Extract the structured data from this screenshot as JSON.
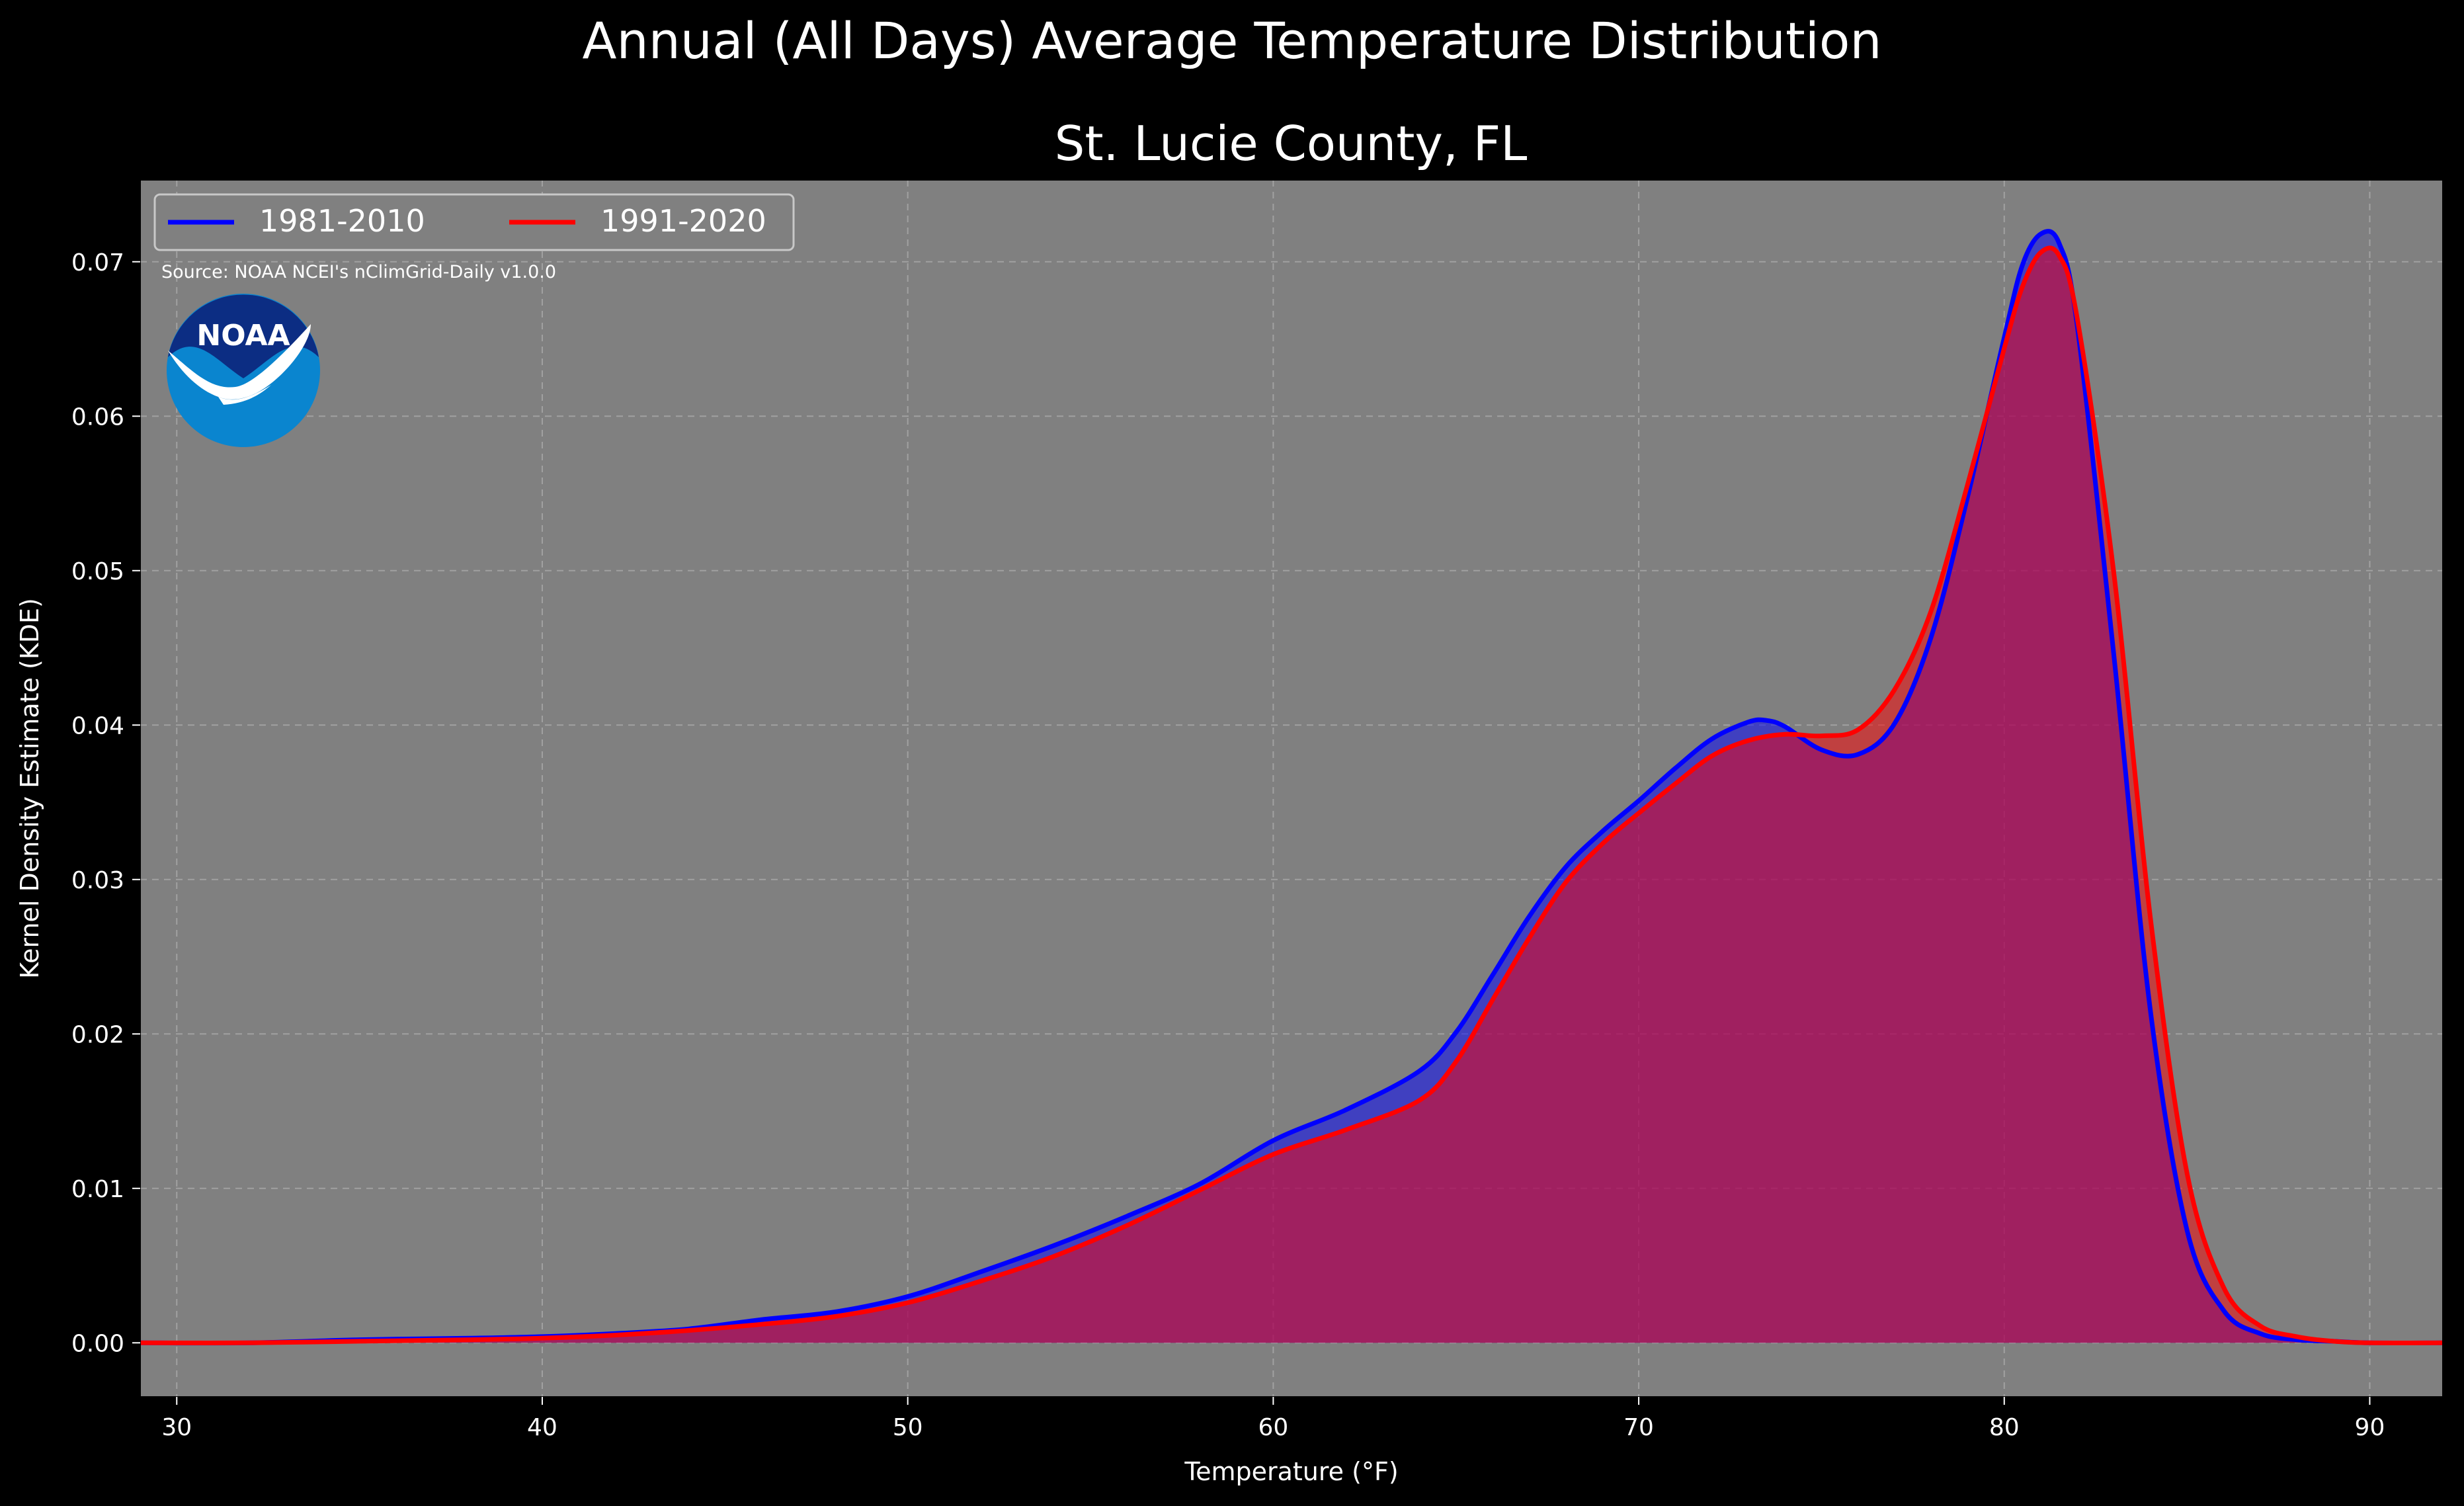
{
  "chart_data": {
    "type": "area",
    "title": "Annual (All Days) Average Temperature Distribution",
    "subtitle": "St. Lucie County, FL",
    "xlabel": "Temperature ($^\\circ$F)",
    "xlabel_display": "Temperature (°F)",
    "ylabel": "Kernel Density Estimate (KDE)",
    "source_note": "Source: NOAA NCEI's nClimGrid-Daily v1.0.0",
    "logo_text": "NOAA",
    "xlim": [
      29,
      92
    ],
    "ylim": [
      -0.0035,
      0.0753
    ],
    "x_ticks": [
      30,
      40,
      50,
      60,
      70,
      80,
      90
    ],
    "x_tick_labels": [
      "30",
      "40",
      "50",
      "60",
      "70",
      "80",
      "90"
    ],
    "y_ticks": [
      0.0,
      0.01,
      0.02,
      0.03,
      0.04,
      0.05,
      0.06,
      0.07
    ],
    "y_tick_labels": [
      "0.00",
      "0.01",
      "0.02",
      "0.03",
      "0.04",
      "0.05",
      "0.06",
      "0.07"
    ],
    "grid": true,
    "legend_position": "top-left",
    "colors": {
      "figure_background": "#000000",
      "plot_background": "#808080",
      "grid": "#b0b0b0",
      "text": "#ffffff",
      "noaa_outer": "#0a85cf",
      "noaa_inner": "#0c2d83"
    },
    "series": [
      {
        "name": "1981-2010",
        "color": "#0000ff",
        "fill": "#0000ff",
        "x": [
          29,
          32,
          35,
          38,
          40,
          42,
          44,
          46,
          48,
          50,
          52,
          54,
          56,
          58,
          60,
          62,
          64,
          65,
          66,
          67,
          68,
          69,
          70,
          71,
          72,
          73,
          73.5,
          74,
          75,
          76,
          77,
          78,
          79,
          80,
          80.5,
          81,
          81.5,
          82,
          83,
          84,
          85,
          86,
          87,
          88,
          89,
          90,
          92
        ],
        "y": [
          0.0,
          0.0,
          0.0002,
          0.0003,
          0.0004,
          0.0006,
          0.0009,
          0.0015,
          0.002,
          0.003,
          0.0046,
          0.0063,
          0.0082,
          0.0103,
          0.0131,
          0.0151,
          0.0176,
          0.0201,
          0.0238,
          0.0276,
          0.0308,
          0.0331,
          0.0351,
          0.0372,
          0.0391,
          0.0402,
          0.0403,
          0.0399,
          0.0384,
          0.0381,
          0.0401,
          0.0457,
          0.0548,
          0.0651,
          0.0698,
          0.0718,
          0.0712,
          0.0658,
          0.0445,
          0.0215,
          0.0073,
          0.0021,
          0.0006,
          0.0002,
          0.0001,
          0.0,
          0.0
        ]
      },
      {
        "name": "1991-2020",
        "color": "#ff0000",
        "fill": "#ff0000",
        "x": [
          29,
          32,
          35,
          38,
          40,
          42,
          44,
          46,
          48,
          50,
          52,
          54,
          56,
          58,
          60,
          62,
          64,
          65,
          66,
          67,
          68,
          69,
          70,
          71,
          72,
          73,
          74,
          75,
          76,
          77,
          78,
          79,
          80,
          80.5,
          81,
          81.5,
          82,
          83,
          84,
          85,
          86,
          87,
          88,
          89,
          90,
          92
        ],
        "y": [
          0.0,
          0.0,
          0.0001,
          0.0002,
          0.0003,
          0.0005,
          0.0008,
          0.0012,
          0.0017,
          0.0026,
          0.004,
          0.0056,
          0.0076,
          0.0099,
          0.0122,
          0.0138,
          0.0157,
          0.0182,
          0.0222,
          0.0262,
          0.0298,
          0.0323,
          0.0343,
          0.0362,
          0.038,
          0.039,
          0.0394,
          0.0393,
          0.0397,
          0.0423,
          0.0474,
          0.0556,
          0.0644,
          0.0684,
          0.0706,
          0.0704,
          0.0663,
          0.0498,
          0.0275,
          0.011,
          0.0036,
          0.0011,
          0.0004,
          0.0001,
          0.0,
          0.0
        ]
      }
    ]
  }
}
